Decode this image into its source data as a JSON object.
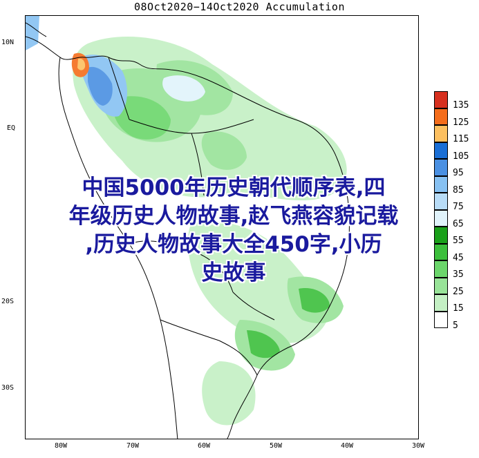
{
  "title": "08Oct2020−14Oct2020 Accumulation",
  "latitude_labels": [
    "10N",
    "EQ",
    "20S",
    "30S"
  ],
  "longitude_labels": [
    "80W",
    "70W",
    "60W",
    "50W",
    "40W",
    "30W"
  ],
  "legend": {
    "levels": [
      "135",
      "125",
      "115",
      "105",
      "95",
      "85",
      "75",
      "65",
      "55",
      "45",
      "35",
      "25",
      "15",
      "5"
    ],
    "colors": [
      "#d7301f",
      "#f46d1b",
      "#fdc060",
      "#1a6fd6",
      "#4a90e2",
      "#87c1f2",
      "#b8dcf7",
      "#e1f3fb",
      "#1aa01a",
      "#3cbf3c",
      "#6bd66b",
      "#98e398",
      "#c4f0c4",
      "#ffffff"
    ]
  },
  "overlay_text": {
    "line1": "中国5000年历史朝代顺序表,四",
    "line2": "年级历史人物故事,赵飞燕容貌记载",
    "line3": ",历史人物故事大全450字,小历",
    "line4": "史故事"
  }
}
